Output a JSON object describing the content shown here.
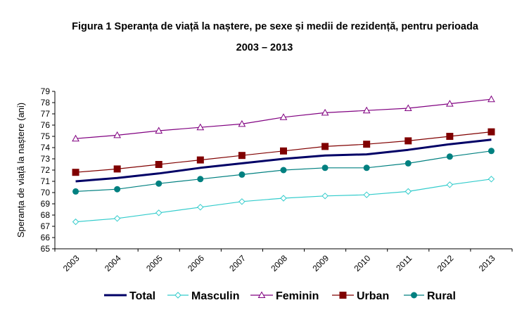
{
  "title_line1": "Figura 1 Speranța de viață la naștere, pe sexe și medii de rezidență, pentru perioada",
  "title_line2": "2003 – 2013",
  "chart_data": {
    "type": "line",
    "title": "Figura 1 Speranța de viață la naștere, pe sexe și medii de rezidență, pentru perioada 2003 – 2013",
    "xlabel": "",
    "ylabel": "Speranța de viață la naștere (ani)",
    "ylim": [
      65,
      79
    ],
    "yticks": [
      65,
      66,
      67,
      68,
      69,
      70,
      71,
      72,
      73,
      74,
      75,
      76,
      77,
      78,
      79
    ],
    "categories": [
      "2003",
      "2004",
      "2005",
      "2006",
      "2007",
      "2008",
      "2009",
      "2010",
      "2011",
      "2012",
      "2013"
    ],
    "grid": false,
    "legend_position": "bottom",
    "series": [
      {
        "name": "Total",
        "color": "#000066",
        "marker": "none",
        "values": [
          71.0,
          71.3,
          71.7,
          72.2,
          72.6,
          73.0,
          73.3,
          73.4,
          73.8,
          74.3,
          74.7
        ]
      },
      {
        "name": "Masculin",
        "color": "#33cccc",
        "marker": "diamond",
        "values": [
          67.4,
          67.7,
          68.2,
          68.7,
          69.2,
          69.5,
          69.7,
          69.8,
          70.1,
          70.7,
          71.2
        ]
      },
      {
        "name": "Feminin",
        "color": "#800080",
        "marker": "triangle",
        "values": [
          74.8,
          75.1,
          75.5,
          75.8,
          76.1,
          76.7,
          77.1,
          77.3,
          77.5,
          77.9,
          78.3
        ]
      },
      {
        "name": "Urban",
        "color": "#800000",
        "marker": "square",
        "values": [
          71.8,
          72.1,
          72.5,
          72.9,
          73.3,
          73.7,
          74.1,
          74.3,
          74.6,
          75.0,
          75.4
        ]
      },
      {
        "name": "Rural",
        "color": "#008080",
        "marker": "circle",
        "values": [
          70.1,
          70.3,
          70.8,
          71.2,
          71.6,
          72.0,
          72.2,
          72.2,
          72.6,
          73.2,
          73.7
        ]
      }
    ]
  }
}
